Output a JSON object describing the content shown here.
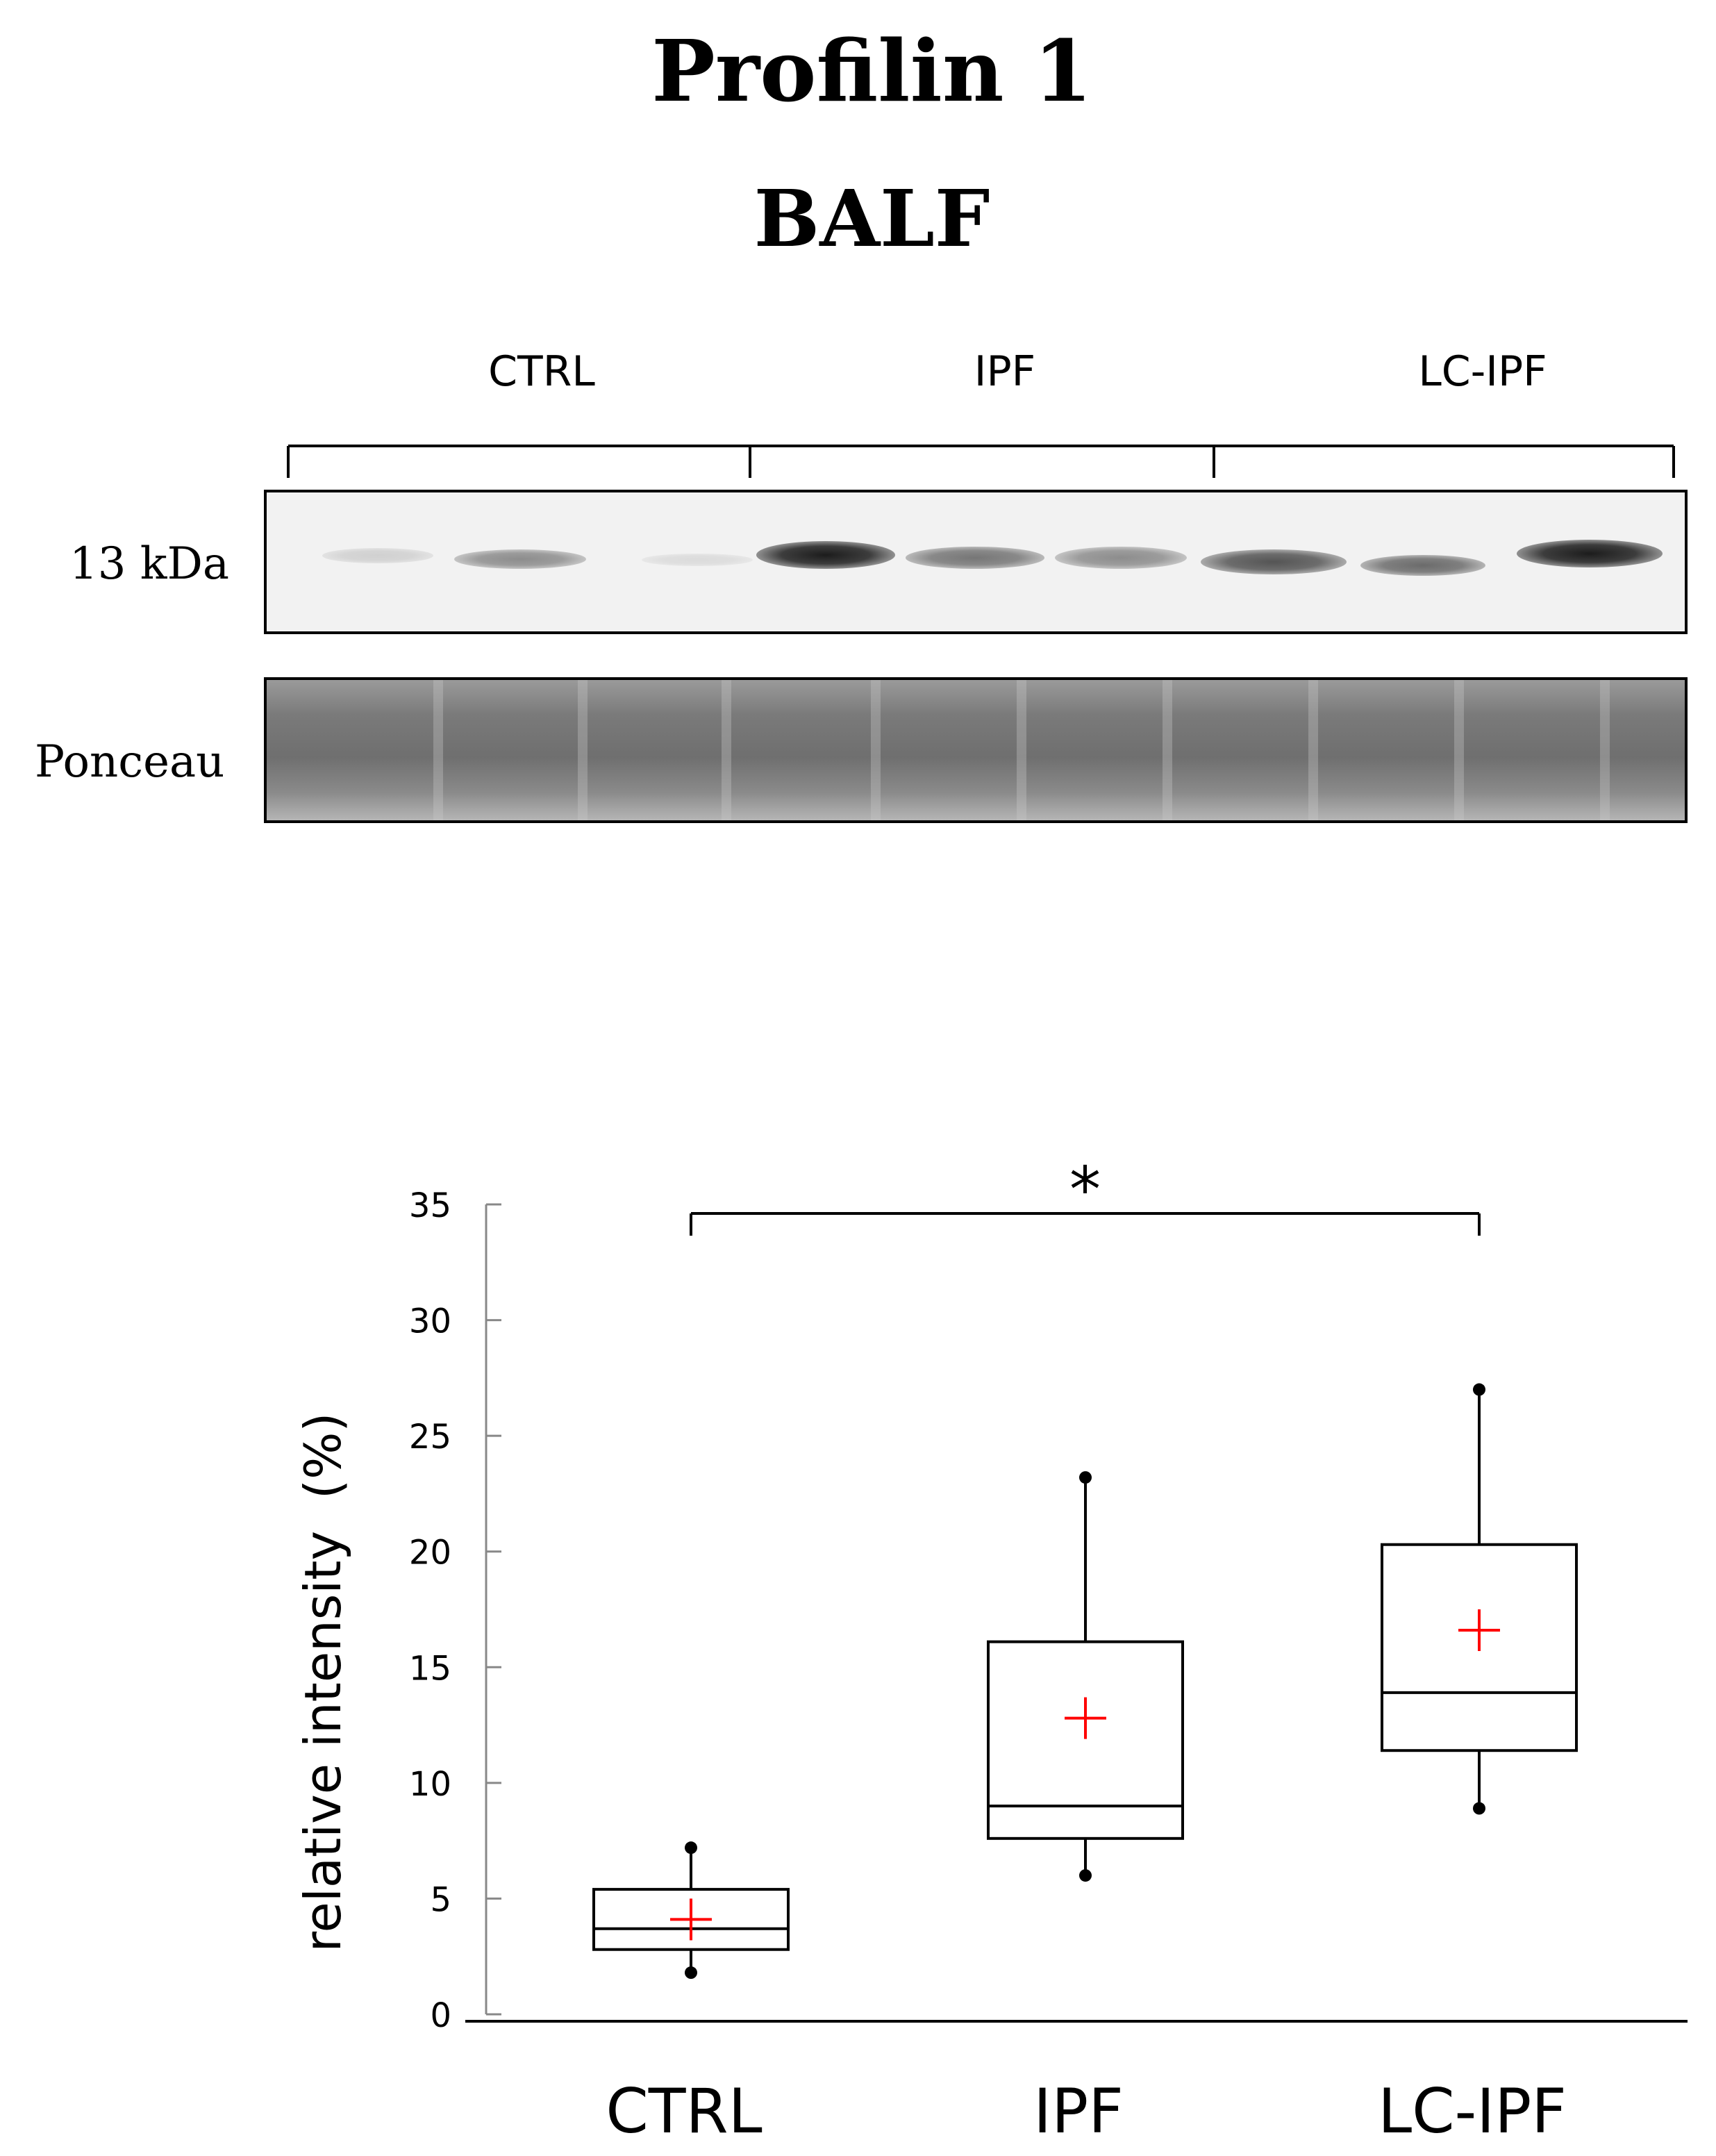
{
  "figure": {
    "title": "Profilin 1",
    "subtitle": "BALF",
    "groups": [
      "CTRL",
      "IPF",
      "LC-IPF"
    ],
    "blot_marker": "13 kDa",
    "loading_control": "Ponceau",
    "significance": "*"
  },
  "chart_data": {
    "type": "box",
    "title": "",
    "ylabel": "relative intensity  (%)",
    "ylim": [
      0,
      35
    ],
    "yticks": [
      0,
      5,
      10,
      15,
      20,
      25,
      30,
      35
    ],
    "categories": [
      "CTRL",
      "IPF",
      "LC-IPF"
    ],
    "boxes": [
      {
        "name": "CTRL",
        "min": 1.8,
        "q1": 2.8,
        "median": 3.7,
        "q3": 5.4,
        "max": 7.2,
        "mean": 4.1
      },
      {
        "name": "IPF",
        "min": 6.0,
        "q1": 7.6,
        "median": 9.0,
        "q3": 16.1,
        "max": 23.2,
        "mean": 12.8
      },
      {
        "name": "LC-IPF",
        "min": 8.9,
        "q1": 11.4,
        "median": 13.9,
        "q3": 20.3,
        "max": 27.0,
        "mean": 16.6
      }
    ],
    "significance": {
      "from": "CTRL",
      "to": "LC-IPF",
      "label": "*"
    },
    "grid": false,
    "colors": {
      "box": "#000000",
      "mean_marker": "#ff0000"
    }
  }
}
